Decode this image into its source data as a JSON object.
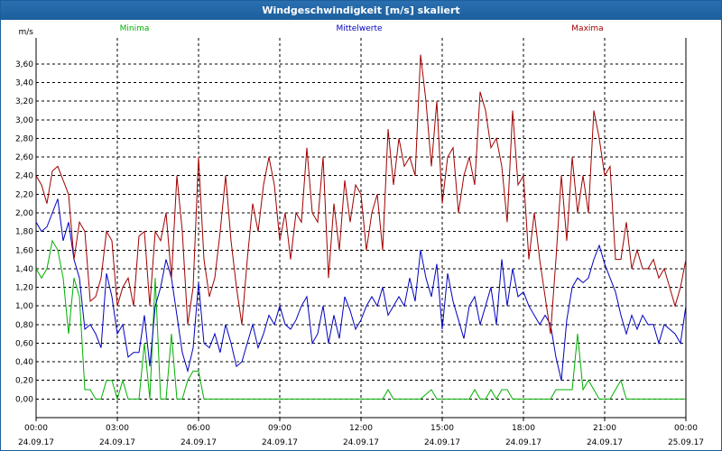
{
  "window": {
    "title": "Windgeschwindigkeit [m/s] skaliert"
  },
  "chart_data": {
    "type": "line",
    "title": "Windgeschwindigkeit [m/s] skaliert",
    "ylabel": "m/s",
    "ylim": [
      -0.2,
      3.88
    ],
    "xlim": [
      0,
      24
    ],
    "yticks": [
      0.0,
      0.2,
      0.4,
      0.6,
      0.8,
      1.0,
      1.2,
      1.4,
      1.6,
      1.8,
      2.0,
      2.2,
      2.4,
      2.6,
      2.8,
      3.0,
      3.2,
      3.4,
      3.6
    ],
    "ytick_labels": [
      "0,00",
      "0,20",
      "0,40",
      "0,60",
      "0,80",
      "1,00",
      "1,20",
      "1,40",
      "1,60",
      "1,80",
      "2,00",
      "2,20",
      "2,40",
      "2,60",
      "2,80",
      "3,00",
      "3,20",
      "3,40",
      "3,60"
    ],
    "xticks": [
      0,
      3,
      6,
      9,
      12,
      15,
      18,
      21,
      24
    ],
    "xtick_times": [
      "00:00",
      "03:00",
      "06:00",
      "09:00",
      "12:00",
      "15:00",
      "18:00",
      "21:00",
      "00:00"
    ],
    "xtick_dates": [
      "24.09.17",
      "24.09.17",
      "24.09.17",
      "24.09.17",
      "24.09.17",
      "24.09.17",
      "24.09.17",
      "24.09.17",
      "25.09.17"
    ],
    "grid": true,
    "legend": "top",
    "series": [
      {
        "name": "Minima",
        "color": "#00b000",
        "x": [
          0,
          0.2,
          0.4,
          0.6,
          0.8,
          1.0,
          1.2,
          1.4,
          1.6,
          1.8,
          2.0,
          2.2,
          2.4,
          2.6,
          2.8,
          3.0,
          3.2,
          3.4,
          3.6,
          3.8,
          4.0,
          4.2,
          4.4,
          4.6,
          4.8,
          5.0,
          5.2,
          5.4,
          5.6,
          5.8,
          6.0,
          6.2,
          6.4,
          6.6,
          12.8,
          13.0,
          13.2,
          14.2,
          14.6,
          14.8,
          15.0,
          16.0,
          16.2,
          16.4,
          16.6,
          16.8,
          17.0,
          17.2,
          17.4,
          17.6,
          19.0,
          19.2,
          19.4,
          19.6,
          19.8,
          20.0,
          20.2,
          20.4,
          20.6,
          20.8,
          21.0,
          21.2,
          21.4,
          21.6,
          21.8,
          24.0
        ],
        "values": [
          1.4,
          1.3,
          1.4,
          1.7,
          1.6,
          1.3,
          0.7,
          1.3,
          1.1,
          0.1,
          0.1,
          0.0,
          0.0,
          0.2,
          0.2,
          0.0,
          0.2,
          0.0,
          0.0,
          0.0,
          0.6,
          0.0,
          1.3,
          0.0,
          0.0,
          0.7,
          0.0,
          0.0,
          0.2,
          0.3,
          0.3,
          0.0,
          0.0,
          0.0,
          0.0,
          0.1,
          0.0,
          0.0,
          0.1,
          0.0,
          0.0,
          0.0,
          0.1,
          0.0,
          0.0,
          0.1,
          0.0,
          0.1,
          0.1,
          0.0,
          0.0,
          0.1,
          0.1,
          0.1,
          0.1,
          0.7,
          0.1,
          0.2,
          0.1,
          0.0,
          0.0,
          0.0,
          0.1,
          0.2,
          0.0,
          0.0
        ]
      },
      {
        "name": "Mittelwerte",
        "color": "#0000c0",
        "x": [
          0,
          0.2,
          0.4,
          0.6,
          0.8,
          1.0,
          1.2,
          1.4,
          1.6,
          1.8,
          2.0,
          2.2,
          2.4,
          2.6,
          2.8,
          3.0,
          3.2,
          3.4,
          3.6,
          3.8,
          4.0,
          4.2,
          4.4,
          4.6,
          4.8,
          5.0,
          5.2,
          5.4,
          5.6,
          5.8,
          6.0,
          6.2,
          6.4,
          6.6,
          6.8,
          7.0,
          7.2,
          7.4,
          7.6,
          7.8,
          8.0,
          8.2,
          8.4,
          8.6,
          8.8,
          9.0,
          9.2,
          9.4,
          9.6,
          9.8,
          10.0,
          10.2,
          10.4,
          10.6,
          10.8,
          11.0,
          11.2,
          11.4,
          11.6,
          11.8,
          12.0,
          12.2,
          12.4,
          12.6,
          12.8,
          13.0,
          13.2,
          13.4,
          13.6,
          13.8,
          14.0,
          14.2,
          14.4,
          14.6,
          14.8,
          15.0,
          15.2,
          15.4,
          15.6,
          15.8,
          16.0,
          16.2,
          16.4,
          16.6,
          16.8,
          17.0,
          17.2,
          17.4,
          17.6,
          17.8,
          18.0,
          18.2,
          18.4,
          18.6,
          18.8,
          19.0,
          19.2,
          19.4,
          19.6,
          19.8,
          20.0,
          20.2,
          20.4,
          20.6,
          20.8,
          21.0,
          21.2,
          21.4,
          21.6,
          21.8,
          22.0,
          22.2,
          22.4,
          22.6,
          22.8,
          23.0,
          23.2,
          23.4,
          23.6,
          23.8,
          24.0
        ],
        "values": [
          1.9,
          1.8,
          1.85,
          2.0,
          2.15,
          1.7,
          1.9,
          1.5,
          1.3,
          0.75,
          0.8,
          0.7,
          0.55,
          1.35,
          1.1,
          0.7,
          0.8,
          0.45,
          0.5,
          0.5,
          0.9,
          0.35,
          1.0,
          1.2,
          1.5,
          1.3,
          0.9,
          0.5,
          0.3,
          0.55,
          1.25,
          0.6,
          0.55,
          0.7,
          0.5,
          0.8,
          0.6,
          0.35,
          0.4,
          0.6,
          0.8,
          0.55,
          0.7,
          0.9,
          0.8,
          1.0,
          0.8,
          0.75,
          0.85,
          1.0,
          1.1,
          0.6,
          0.7,
          1.0,
          0.6,
          0.9,
          0.65,
          1.1,
          0.95,
          0.75,
          0.85,
          1.0,
          1.1,
          1.0,
          1.2,
          0.9,
          1.0,
          1.1,
          1.0,
          1.3,
          1.05,
          1.6,
          1.3,
          1.1,
          1.45,
          0.75,
          1.35,
          1.05,
          0.85,
          0.65,
          1.0,
          1.1,
          0.8,
          1.0,
          1.2,
          0.8,
          1.5,
          1.0,
          1.4,
          1.1,
          1.15,
          1.0,
          0.9,
          0.8,
          0.9,
          0.8,
          0.45,
          0.2,
          0.85,
          1.2,
          1.3,
          1.25,
          1.3,
          1.5,
          1.65,
          1.45,
          1.3,
          1.15,
          0.9,
          0.7,
          0.9,
          0.75,
          0.9,
          0.8,
          0.8,
          0.6,
          0.8,
          0.75,
          0.7,
          0.6,
          1.0
        ]
      },
      {
        "name": "Maxima",
        "color": "#a00000",
        "x": [
          0,
          0.2,
          0.4,
          0.6,
          0.8,
          1.0,
          1.2,
          1.4,
          1.6,
          1.8,
          2.0,
          2.2,
          2.4,
          2.6,
          2.8,
          3.0,
          3.2,
          3.4,
          3.6,
          3.8,
          4.0,
          4.2,
          4.4,
          4.6,
          4.8,
          5.0,
          5.2,
          5.4,
          5.6,
          5.8,
          6.0,
          6.2,
          6.4,
          6.6,
          6.8,
          7.0,
          7.2,
          7.4,
          7.6,
          7.8,
          8.0,
          8.2,
          8.4,
          8.6,
          8.8,
          9.0,
          9.2,
          9.4,
          9.6,
          9.8,
          10.0,
          10.2,
          10.4,
          10.6,
          10.8,
          11.0,
          11.2,
          11.4,
          11.6,
          11.8,
          12.0,
          12.2,
          12.4,
          12.6,
          12.8,
          13.0,
          13.2,
          13.4,
          13.6,
          13.8,
          14.0,
          14.2,
          14.4,
          14.6,
          14.8,
          15.0,
          15.2,
          15.4,
          15.6,
          15.8,
          16.0,
          16.2,
          16.4,
          16.6,
          16.8,
          17.0,
          17.2,
          17.4,
          17.6,
          17.8,
          18.0,
          18.2,
          18.4,
          18.6,
          18.8,
          19.0,
          19.2,
          19.4,
          19.6,
          19.8,
          20.0,
          20.2,
          20.4,
          20.6,
          20.8,
          21.0,
          21.2,
          21.4,
          21.6,
          21.8,
          22.0,
          22.2,
          22.4,
          22.6,
          22.8,
          23.0,
          23.2,
          23.4,
          23.6,
          23.8,
          24.0
        ],
        "values": [
          2.4,
          2.3,
          2.1,
          2.45,
          2.5,
          2.35,
          2.2,
          1.5,
          1.9,
          1.8,
          1.05,
          1.1,
          1.3,
          1.8,
          1.7,
          1.0,
          1.2,
          1.3,
          1.0,
          1.75,
          1.8,
          1.0,
          1.8,
          1.7,
          2.0,
          1.3,
          2.4,
          1.8,
          0.8,
          1.2,
          2.6,
          1.5,
          1.1,
          1.3,
          1.8,
          2.4,
          1.7,
          1.2,
          0.8,
          1.5,
          2.1,
          1.8,
          2.3,
          2.6,
          2.3,
          1.7,
          2.0,
          1.5,
          2.0,
          1.9,
          2.7,
          2.0,
          1.9,
          2.6,
          1.3,
          2.1,
          1.6,
          2.35,
          1.9,
          2.3,
          2.2,
          1.6,
          2.0,
          2.2,
          1.6,
          2.9,
          2.3,
          2.8,
          2.5,
          2.6,
          2.4,
          3.7,
          3.2,
          2.5,
          3.2,
          2.1,
          2.6,
          2.7,
          2.0,
          2.4,
          2.6,
          2.3,
          3.3,
          3.1,
          2.7,
          2.8,
          2.5,
          1.9,
          3.1,
          2.3,
          2.4,
          1.5,
          2.0,
          1.5,
          1.1,
          0.7,
          1.5,
          2.4,
          1.7,
          2.6,
          2.0,
          2.4,
          2.0,
          3.1,
          2.8,
          2.4,
          2.5,
          1.5,
          1.5,
          1.9,
          1.4,
          1.6,
          1.4,
          1.4,
          1.5,
          1.3,
          1.4,
          1.2,
          1.0,
          1.2,
          1.5
        ]
      }
    ]
  }
}
